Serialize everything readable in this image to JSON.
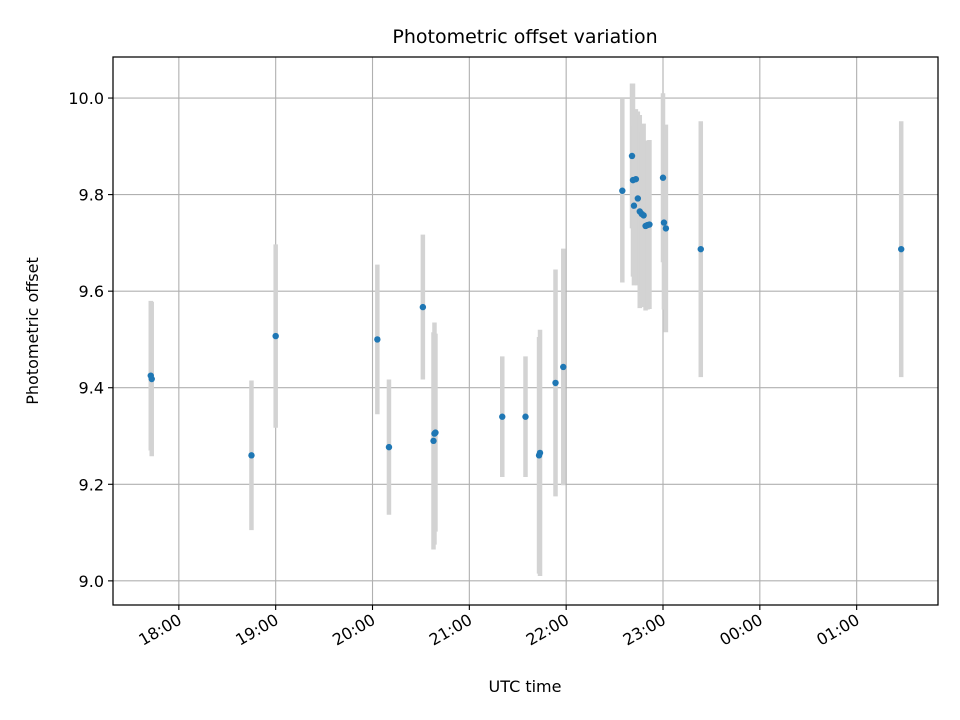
{
  "chart_data": {
    "type": "scatter",
    "title": "Photometric offset variation",
    "xlabel": "UTC time",
    "ylabel": "Photometric offset",
    "x_unit": "hours (UTC clock; values above 24 are after midnight)",
    "xlim": [
      17.32,
      25.84
    ],
    "ylim": [
      8.95,
      10.085
    ],
    "grid": true,
    "x_ticks": [
      {
        "value": 18,
        "label": "18:00"
      },
      {
        "value": 19,
        "label": "19:00"
      },
      {
        "value": 20,
        "label": "20:00"
      },
      {
        "value": 21,
        "label": "21:00"
      },
      {
        "value": 22,
        "label": "22:00"
      },
      {
        "value": 23,
        "label": "23:00"
      },
      {
        "value": 24,
        "label": "00:00"
      },
      {
        "value": 25,
        "label": "01:00"
      }
    ],
    "y_ticks": [
      {
        "value": 9.0,
        "label": "9.0"
      },
      {
        "value": 9.2,
        "label": "9.2"
      },
      {
        "value": 9.4,
        "label": "9.4"
      },
      {
        "value": 9.6,
        "label": "9.6"
      },
      {
        "value": 9.8,
        "label": "9.8"
      },
      {
        "value": 10.0,
        "label": "10.0"
      }
    ],
    "colors": {
      "point": "#1f77b4",
      "errorbar": "#d3d3d3",
      "grid": "#b0b0b0"
    },
    "points": [
      {
        "x": 17.71,
        "y": 9.425,
        "err": 0.155
      },
      {
        "x": 17.72,
        "y": 9.418,
        "err": 0.16
      },
      {
        "x": 18.75,
        "y": 9.26,
        "err": 0.155
      },
      {
        "x": 19.0,
        "y": 9.507,
        "err": 0.19
      },
      {
        "x": 20.05,
        "y": 9.5,
        "err": 0.155
      },
      {
        "x": 20.17,
        "y": 9.277,
        "err": 0.14
      },
      {
        "x": 20.52,
        "y": 9.567,
        "err": 0.15
      },
      {
        "x": 20.63,
        "y": 9.29,
        "err": 0.225
      },
      {
        "x": 20.64,
        "y": 9.305,
        "err": 0.23
      },
      {
        "x": 20.65,
        "y": 9.307,
        "err": 0.205
      },
      {
        "x": 21.34,
        "y": 9.34,
        "err": 0.125
      },
      {
        "x": 21.58,
        "y": 9.34,
        "err": 0.125
      },
      {
        "x": 21.72,
        "y": 9.26,
        "err": 0.245
      },
      {
        "x": 21.73,
        "y": 9.265,
        "err": 0.255
      },
      {
        "x": 21.89,
        "y": 9.41,
        "err": 0.235
      },
      {
        "x": 21.97,
        "y": 9.443,
        "err": 0.245
      },
      {
        "x": 22.58,
        "y": 9.808,
        "err": 0.19
      },
      {
        "x": 22.68,
        "y": 9.88,
        "err": 0.15
      },
      {
        "x": 22.69,
        "y": 9.83,
        "err": 0.2
      },
      {
        "x": 22.7,
        "y": 9.777,
        "err": 0.165
      },
      {
        "x": 22.72,
        "y": 9.832,
        "err": 0.145
      },
      {
        "x": 22.74,
        "y": 9.792,
        "err": 0.18
      },
      {
        "x": 22.76,
        "y": 9.765,
        "err": 0.2
      },
      {
        "x": 22.78,
        "y": 9.76,
        "err": 0.17
      },
      {
        "x": 22.8,
        "y": 9.757,
        "err": 0.19
      },
      {
        "x": 22.82,
        "y": 9.735,
        "err": 0.175
      },
      {
        "x": 22.84,
        "y": 9.737,
        "err": 0.175
      },
      {
        "x": 22.86,
        "y": 9.738,
        "err": 0.175
      },
      {
        "x": 23.0,
        "y": 9.835,
        "err": 0.175
      },
      {
        "x": 23.01,
        "y": 9.742,
        "err": 0.18
      },
      {
        "x": 23.03,
        "y": 9.73,
        "err": 0.215
      },
      {
        "x": 23.39,
        "y": 9.687,
        "err": 0.265
      },
      {
        "x": 25.46,
        "y": 9.687,
        "err": 0.265
      }
    ]
  }
}
